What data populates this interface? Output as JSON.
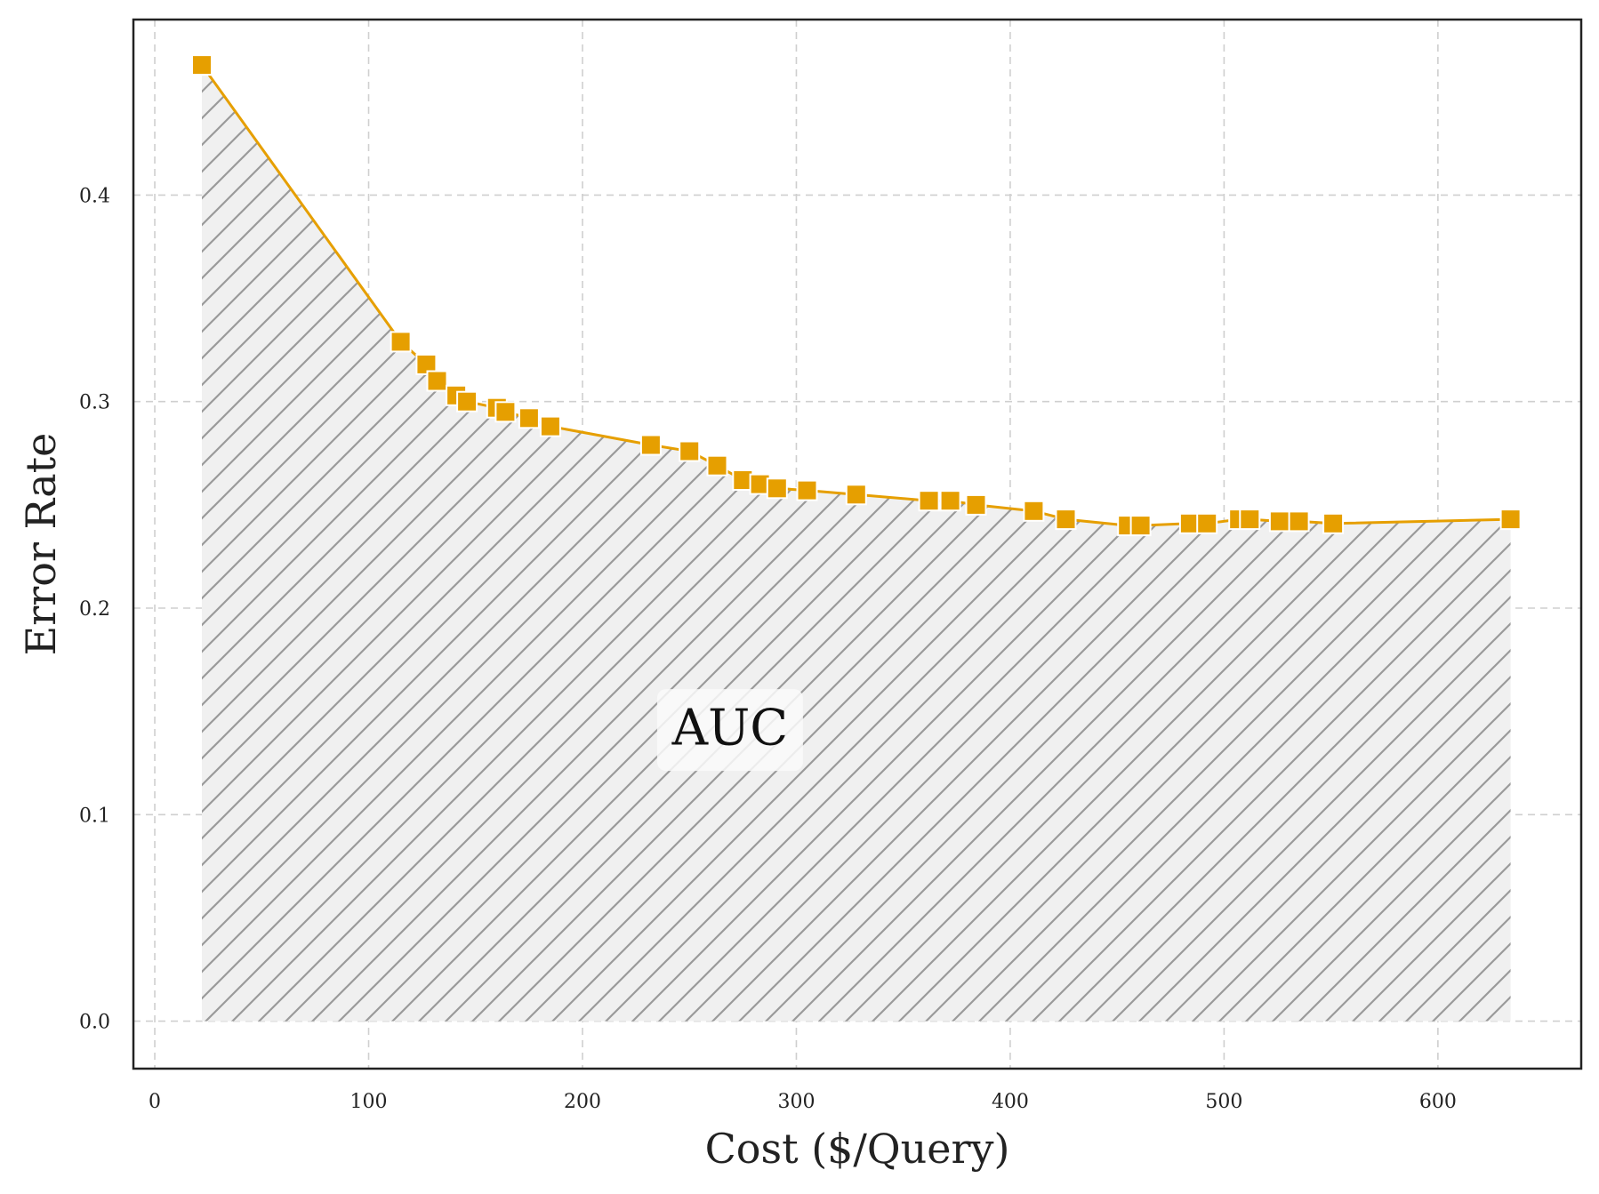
{
  "chart_data": {
    "type": "line",
    "title": "",
    "xlabel": "Cost ($/Query)",
    "ylabel": "Error Rate",
    "xlim": [
      -10,
      667
    ],
    "ylim": [
      -0.023,
      0.485
    ],
    "xticks": [
      0,
      100,
      200,
      300,
      400,
      500,
      600
    ],
    "yticks": [
      0.0,
      0.1,
      0.2,
      0.3,
      0.4
    ],
    "xtick_labels": [
      "0",
      "100",
      "200",
      "300",
      "400",
      "500",
      "600"
    ],
    "ytick_labels": [
      "0.0",
      "0.1",
      "0.2",
      "0.3",
      "0.4"
    ],
    "grid": true,
    "fill_under": true,
    "fill_hatch": "diagonal",
    "annotation": "AUC",
    "annotation_position": {
      "x": 269,
      "y": 0.141
    },
    "series": [
      {
        "name": "Error Rate",
        "marker": "square",
        "color": "#E69F00",
        "x": [
          22,
          115,
          127,
          132,
          141,
          146,
          160,
          164,
          175,
          185,
          232,
          250,
          263,
          275,
          283,
          291,
          305,
          328,
          362,
          372,
          384,
          411,
          426,
          455,
          461,
          484,
          492,
          507,
          512,
          526,
          535,
          551,
          634
        ],
        "y": [
          0.463,
          0.329,
          0.318,
          0.31,
          0.303,
          0.3,
          0.297,
          0.295,
          0.292,
          0.288,
          0.279,
          0.276,
          0.269,
          0.262,
          0.26,
          0.258,
          0.257,
          0.255,
          0.252,
          0.252,
          0.25,
          0.247,
          0.243,
          0.24,
          0.24,
          0.241,
          0.241,
          0.243,
          0.243,
          0.242,
          0.242,
          0.241,
          0.243
        ]
      }
    ]
  },
  "colors": {
    "line": "#E69F00",
    "marker_fill": "#E69F00",
    "marker_edge": "#ffffff",
    "area_fill": "#f0f0f0",
    "hatch": "#9a9a9a",
    "grid": "#cfcfcf",
    "axes": "#222222",
    "annotation_box": "#fafafa"
  }
}
